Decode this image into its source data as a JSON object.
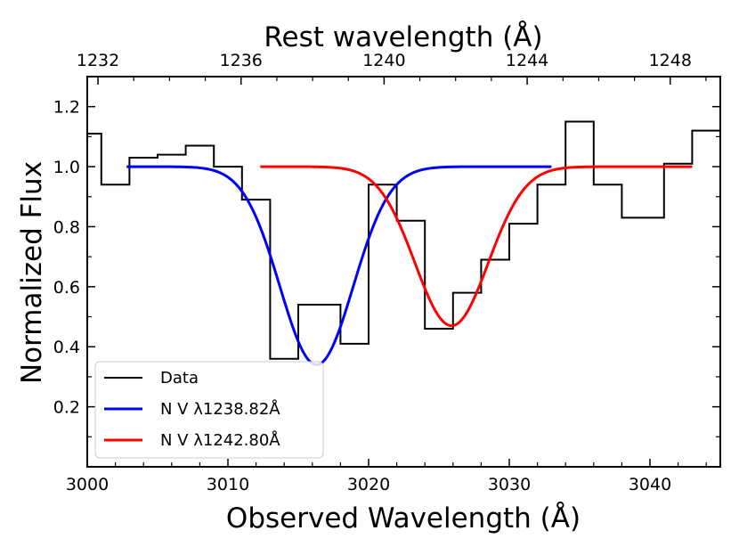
{
  "chart_data": {
    "type": "line",
    "xlabel": "Observed Wavelength (Å)",
    "ylabel": "Normalized Flux",
    "top_xlabel": "Rest wavelength (Å)",
    "xlim": [
      3000,
      3045
    ],
    "ylim": [
      0,
      1.3
    ],
    "top_xlim": [
      1231.7,
      1249.4
    ],
    "x_ticks": [
      3000,
      3010,
      3020,
      3030,
      3040
    ],
    "x_tick_labels": [
      "3000",
      "3010",
      "3020",
      "3030",
      "3040"
    ],
    "y_ticks": [
      0.2,
      0.4,
      0.6,
      0.8,
      1.0,
      1.2
    ],
    "y_tick_labels": [
      "0.2",
      "0.4",
      "0.6",
      "0.8",
      "1.0",
      "1.2"
    ],
    "top_ticks": [
      1232,
      1236,
      1240,
      1244,
      1248
    ],
    "top_tick_labels": [
      "1232",
      "1236",
      "1240",
      "1244",
      "1248"
    ],
    "grid": false,
    "legend_position": "bottom-left",
    "series": [
      {
        "name": "Data",
        "kind": "step",
        "color": "#000000",
        "edges": [
          3000,
          3001,
          3003,
          3005,
          3007,
          3009,
          3011,
          3013,
          3015,
          3018,
          3020,
          3022,
          3024,
          3026,
          3028,
          3030,
          3032,
          3034,
          3036,
          3038,
          3041,
          3043,
          3045
        ],
        "values": [
          1.11,
          0.94,
          1.03,
          1.04,
          1.07,
          1.0,
          0.89,
          0.36,
          0.54,
          0.41,
          0.94,
          0.82,
          0.46,
          0.58,
          0.69,
          0.81,
          0.94,
          1.15,
          0.94,
          0.83,
          1.01,
          1.12
        ]
      },
      {
        "name": "N V λ1238.82Å",
        "kind": "gaussian",
        "color": "#0000ff",
        "x_range": [
          3002.8,
          3033.0
        ],
        "center": 3016.3,
        "depth": 0.66,
        "sigma": 2.6
      },
      {
        "name": "N V λ1242.80Å",
        "kind": "gaussian",
        "color": "#ff0000",
        "x_range": [
          3012.3,
          3043.0
        ],
        "center": 3025.9,
        "depth": 0.53,
        "sigma": 2.6
      }
    ]
  }
}
